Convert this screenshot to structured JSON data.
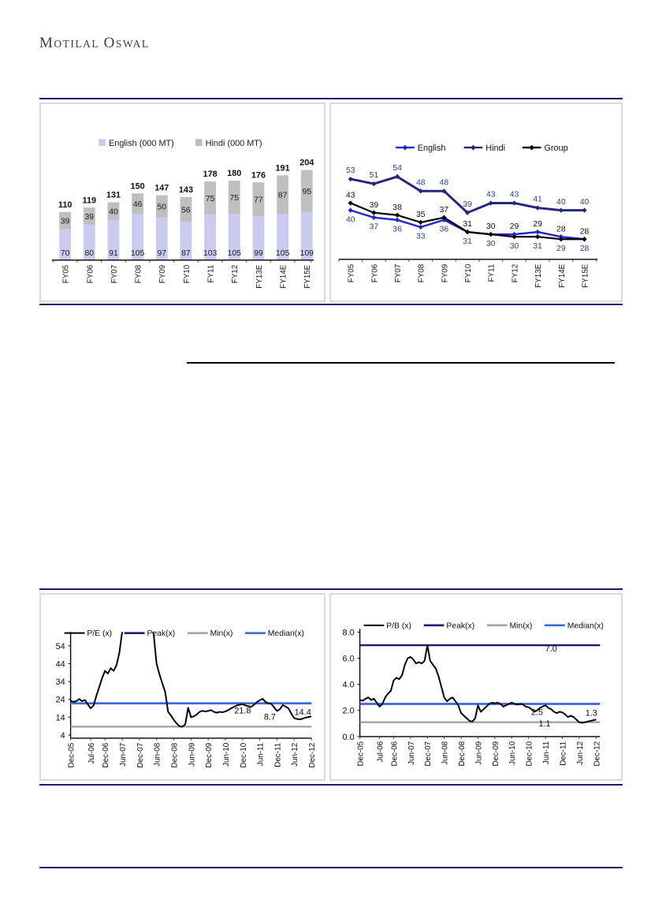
{
  "page": {
    "logo": {
      "first_word_initial": "M",
      "first_word_rest": "otilal",
      "second_word_initial": "O",
      "second_word_rest": "swal",
      "full_text": "Motilal Oswal"
    },
    "colors": {
      "accent_navy": "#1f1b6e",
      "box_border": "#dadada",
      "english_bar": "#cbcbf0",
      "hindi_bar": "#bfbfbf",
      "english_line": "#2626cf",
      "hindi_line": "#26267e",
      "group_line": "#000000",
      "median_line": "#3a6ae0",
      "min_line": "#a3a3a3",
      "value_label_blue": "#2e3f9f"
    }
  },
  "chart_data": [
    {
      "id": "print_volumes",
      "type": "bar",
      "stacked": true,
      "categories": [
        "FY05",
        "FY06",
        "FY07",
        "FY08",
        "FY09",
        "FY10",
        "FY11",
        "FY12",
        "FY13E",
        "FY14E",
        "FY15E"
      ],
      "series": [
        {
          "name": "English (000 MT)",
          "color": "#cbcbf0",
          "values": [
            70,
            80,
            91,
            105,
            97,
            87,
            103,
            105,
            99,
            105,
            109
          ]
        },
        {
          "name": "Hindi (000 MT)",
          "color": "#bfbfbf",
          "values": [
            39,
            39,
            40,
            46,
            50,
            56,
            75,
            75,
            77,
            87,
            95
          ]
        }
      ],
      "totals": [
        110,
        119,
        131,
        150,
        147,
        143,
        178,
        180,
        176,
        191,
        204
      ],
      "legend_position": "top",
      "ylim": [
        0,
        220
      ],
      "grid": false
    },
    {
      "id": "growth_lines",
      "type": "line",
      "categories": [
        "FY05",
        "FY06",
        "FY07",
        "FY08",
        "FY09",
        "FY10",
        "FY11",
        "FY12",
        "FY13E",
        "FY14E",
        "FY15E"
      ],
      "series": [
        {
          "name": "English",
          "color": "#2626cf",
          "label_color": "#2e3f9f",
          "label_side": "below",
          "values": [
            40,
            37,
            36,
            33,
            36,
            31,
            30,
            30,
            31,
            29,
            28
          ]
        },
        {
          "name": "Hindi",
          "color": "#26267e",
          "label_color": "#2e3f9f",
          "label_side": "above",
          "values": [
            53,
            51,
            54,
            48,
            48,
            39,
            43,
            43,
            41,
            40,
            40
          ]
        },
        {
          "name": "Group",
          "color": "#000000",
          "label_color": "#111111",
          "label_side": "above",
          "values": [
            43,
            39,
            38,
            35,
            37,
            31,
            30,
            29,
            29,
            28,
            28
          ]
        }
      ],
      "legend_position": "top",
      "ylim": [
        24,
        58
      ],
      "grid": false
    },
    {
      "id": "pe_band",
      "type": "line",
      "main_series": "P/E (x)",
      "x_labels": [
        "Dec-05",
        "Jul-06",
        "Dec-06",
        "Jun-07",
        "Dec-07",
        "Jun-08",
        "Dec-08",
        "Jun-09",
        "Dec-09",
        "Jun-10",
        "Dec-10",
        "Jun-11",
        "Dec-11",
        "Jun-12",
        "Dec-12"
      ],
      "x_label_months": [
        0,
        7,
        12,
        18,
        24,
        30,
        36,
        42,
        48,
        54,
        60,
        66,
        72,
        78,
        84
      ],
      "yticks": {
        "values": [
          4,
          14,
          24,
          34,
          44,
          54
        ],
        "labels": [
          "4",
          "14",
          "24",
          "34",
          "44",
          "54"
        ]
      },
      "ylim": [
        4,
        58
      ],
      "grid": false,
      "ref_lines": [
        {
          "name": "Peak(x)",
          "color": "#1f1b6e",
          "value": null
        },
        {
          "name": "Min(x)",
          "color": "#a3a3a3",
          "value": 8.7
        },
        {
          "name": "Median(x)",
          "color": "#3a6ae0",
          "value": 21.8
        }
      ],
      "last_value": 14.4,
      "annotations": [
        {
          "text": "21.8",
          "month": 60,
          "value": 16.2
        },
        {
          "text": "8.7",
          "month": 69.5,
          "value": 12.5
        },
        {
          "text": "14.4",
          "month": 81,
          "value": 15.3
        }
      ],
      "points": [
        [
          0,
          23.2
        ],
        [
          1,
          22.6
        ],
        [
          2,
          23.0
        ],
        [
          3,
          24.2
        ],
        [
          4,
          23.0
        ],
        [
          5,
          23.6
        ],
        [
          6,
          21.2
        ],
        [
          7,
          19.0
        ],
        [
          8,
          20.5
        ],
        [
          9,
          26
        ],
        [
          10,
          31
        ],
        [
          11,
          36
        ],
        [
          12,
          40
        ],
        [
          13,
          38.5
        ],
        [
          14,
          41.5
        ],
        [
          15,
          40
        ],
        [
          16,
          43
        ],
        [
          17,
          50
        ],
        [
          18,
          62
        ],
        [
          20,
          75
        ],
        [
          24,
          80
        ],
        [
          27,
          74
        ],
        [
          29,
          60
        ],
        [
          30,
          44
        ],
        [
          31,
          38
        ],
        [
          32,
          33
        ],
        [
          33,
          28
        ],
        [
          34,
          17
        ],
        [
          35,
          15
        ],
        [
          36,
          12.5
        ],
        [
          37,
          10.5
        ],
        [
          38,
          8.9
        ],
        [
          39,
          8.7
        ],
        [
          40,
          10
        ],
        [
          41,
          19.3
        ],
        [
          42,
          14
        ],
        [
          43,
          14.5
        ],
        [
          44,
          15.5
        ],
        [
          45,
          17
        ],
        [
          46,
          17.6
        ],
        [
          47,
          17.2
        ],
        [
          48,
          17.5
        ],
        [
          49,
          18
        ],
        [
          50,
          17
        ],
        [
          51,
          16.5
        ],
        [
          52,
          17
        ],
        [
          53,
          16.8
        ],
        [
          54,
          17.2
        ],
        [
          55,
          18
        ],
        [
          56,
          19
        ],
        [
          57,
          19.8
        ],
        [
          58,
          20.6
        ],
        [
          59,
          21
        ],
        [
          60,
          21.3
        ],
        [
          61,
          20.6
        ],
        [
          62,
          20.2
        ],
        [
          63,
          19.8
        ],
        [
          64,
          21
        ],
        [
          65,
          22.5
        ],
        [
          66,
          23.5
        ],
        [
          67,
          24.3
        ],
        [
          68,
          22.5
        ],
        [
          69,
          21.8
        ],
        [
          70,
          21.5
        ],
        [
          71,
          19.5
        ],
        [
          72,
          17.5
        ],
        [
          73,
          18.5
        ],
        [
          74,
          20.8
        ],
        [
          75,
          20
        ],
        [
          76,
          19
        ],
        [
          77,
          16
        ],
        [
          78,
          13.5
        ],
        [
          79,
          13
        ],
        [
          80,
          12.8
        ],
        [
          81,
          13.2
        ],
        [
          82,
          13.8
        ],
        [
          83,
          14.1
        ],
        [
          84,
          14.4
        ]
      ]
    },
    {
      "id": "pb_band",
      "type": "line",
      "main_series": "P/B (x)",
      "x_labels": [
        "Dec-05",
        "Jul-06",
        "Dec-06",
        "Jun-07",
        "Dec-07",
        "Jun-08",
        "Dec-08",
        "Jun-09",
        "Dec-09",
        "Jun-10",
        "Dec-10",
        "Jun-11",
        "Dec-11",
        "Jun-12",
        "Dec-12"
      ],
      "x_label_months": [
        0,
        7,
        12,
        18,
        24,
        30,
        36,
        42,
        48,
        54,
        60,
        66,
        72,
        78,
        84
      ],
      "yticks": {
        "values": [
          0,
          2,
          4,
          6,
          8
        ],
        "labels": [
          "0.0",
          "2.0",
          "4.0",
          "6.0",
          "8.0"
        ]
      },
      "ylim": [
        0,
        8
      ],
      "grid": false,
      "ref_lines": [
        {
          "name": "Peak(x)",
          "color": "#1f1b6e",
          "value": 7.0
        },
        {
          "name": "Min(x)",
          "color": "#a3a3a3",
          "value": 1.1
        },
        {
          "name": "Median(x)",
          "color": "#3a6ae0",
          "value": 2.5
        }
      ],
      "last_value": 1.3,
      "annotations": [
        {
          "text": "7.0",
          "month": 68,
          "value": 6.53
        },
        {
          "text": "2.5",
          "month": 63,
          "value": 1.66
        },
        {
          "text": "1.1",
          "month": 65.7,
          "value": 0.77
        },
        {
          "text": "1.3",
          "month": 82.3,
          "value": 1.6
        }
      ],
      "points": [
        [
          0,
          2.8
        ],
        [
          1,
          2.75
        ],
        [
          2,
          2.9
        ],
        [
          3,
          3.0
        ],
        [
          4,
          2.8
        ],
        [
          5,
          2.9
        ],
        [
          6,
          2.6
        ],
        [
          7,
          2.3
        ],
        [
          8,
          2.5
        ],
        [
          9,
          3.0
        ],
        [
          10,
          3.3
        ],
        [
          11,
          3.5
        ],
        [
          12,
          4.3
        ],
        [
          13,
          4.5
        ],
        [
          14,
          4.4
        ],
        [
          15,
          4.7
        ],
        [
          16,
          5.5
        ],
        [
          17,
          6.0
        ],
        [
          18,
          6.1
        ],
        [
          19,
          5.9
        ],
        [
          20,
          5.6
        ],
        [
          21,
          5.7
        ],
        [
          22,
          5.6
        ],
        [
          23,
          5.8
        ],
        [
          24,
          7.0
        ],
        [
          25,
          5.8
        ],
        [
          26,
          5.5
        ],
        [
          27,
          5.2
        ],
        [
          28,
          4.6
        ],
        [
          29,
          3.8
        ],
        [
          30,
          3.0
        ],
        [
          31,
          2.7
        ],
        [
          32,
          2.9
        ],
        [
          33,
          3.0
        ],
        [
          34,
          2.7
        ],
        [
          35,
          2.4
        ],
        [
          36,
          1.8
        ],
        [
          37,
          1.6
        ],
        [
          38,
          1.4
        ],
        [
          39,
          1.2
        ],
        [
          40,
          1.15
        ],
        [
          41,
          1.4
        ],
        [
          42,
          2.4
        ],
        [
          43,
          1.9
        ],
        [
          44,
          2.1
        ],
        [
          45,
          2.3
        ],
        [
          46,
          2.5
        ],
        [
          47,
          2.6
        ],
        [
          48,
          2.55
        ],
        [
          49,
          2.6
        ],
        [
          50,
          2.5
        ],
        [
          51,
          2.3
        ],
        [
          52,
          2.4
        ],
        [
          53,
          2.5
        ],
        [
          54,
          2.6
        ],
        [
          55,
          2.5
        ],
        [
          56,
          2.45
        ],
        [
          57,
          2.5
        ],
        [
          58,
          2.45
        ],
        [
          59,
          2.3
        ],
        [
          60,
          2.25
        ],
        [
          61,
          2.1
        ],
        [
          62,
          1.9
        ],
        [
          63,
          2.0
        ],
        [
          64,
          2.2
        ],
        [
          65,
          2.3
        ],
        [
          66,
          2.4
        ],
        [
          67,
          2.2
        ],
        [
          68,
          2.1
        ],
        [
          69,
          1.9
        ],
        [
          70,
          1.8
        ],
        [
          71,
          1.9
        ],
        [
          72,
          1.85
        ],
        [
          73,
          1.7
        ],
        [
          74,
          1.5
        ],
        [
          75,
          1.6
        ],
        [
          76,
          1.5
        ],
        [
          77,
          1.3
        ],
        [
          78,
          1.1
        ],
        [
          79,
          1.05
        ],
        [
          80,
          1.1
        ],
        [
          81,
          1.15
        ],
        [
          82,
          1.2
        ],
        [
          83,
          1.25
        ],
        [
          84,
          1.3
        ]
      ]
    }
  ]
}
